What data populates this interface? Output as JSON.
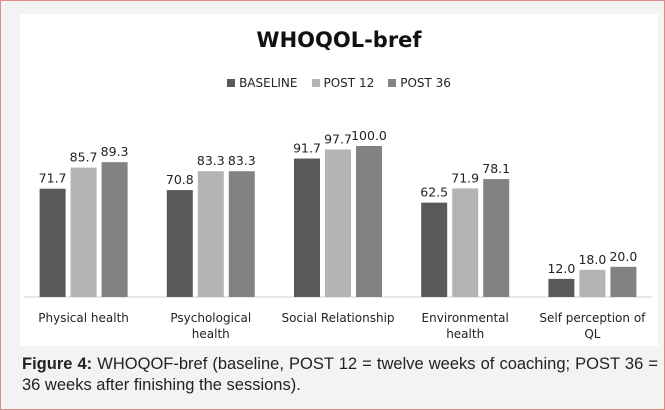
{
  "chart_data": {
    "type": "bar",
    "title": "WHOQOL-bref",
    "categories": [
      "Physical health",
      "Psychological health",
      "Social Relationship",
      "Environmental health",
      "Self perception of QL"
    ],
    "series": [
      {
        "name": "BASELINE",
        "color": "#595959",
        "values": [
          71.7,
          70.8,
          91.7,
          62.5,
          12.0
        ],
        "value_labels": [
          "71.7",
          "70.8",
          "91.7",
          "62.5",
          "12.0"
        ]
      },
      {
        "name": "POST 12",
        "color": "#b4b4b4",
        "values": [
          85.7,
          83.3,
          97.7,
          71.9,
          18.0
        ],
        "value_labels": [
          "85.7",
          "83.3",
          "97.7",
          "71.9",
          "18.0"
        ]
      },
      {
        "name": "POST 36",
        "color": "#828282",
        "values": [
          89.3,
          83.3,
          100.0,
          78.1,
          20.0
        ],
        "value_labels": [
          "89.3",
          "83.3",
          "100.0",
          "78.1",
          "20.0"
        ]
      }
    ],
    "ylim": [
      0,
      100
    ],
    "legend": "top",
    "grid": false
  },
  "caption": {
    "label": "Figure 4:",
    "text": "WHOQOF-bref (baseline, POST 12 = twelve weeks of coaching; POST 36 = 36 weeks after finishing the sessions)."
  }
}
